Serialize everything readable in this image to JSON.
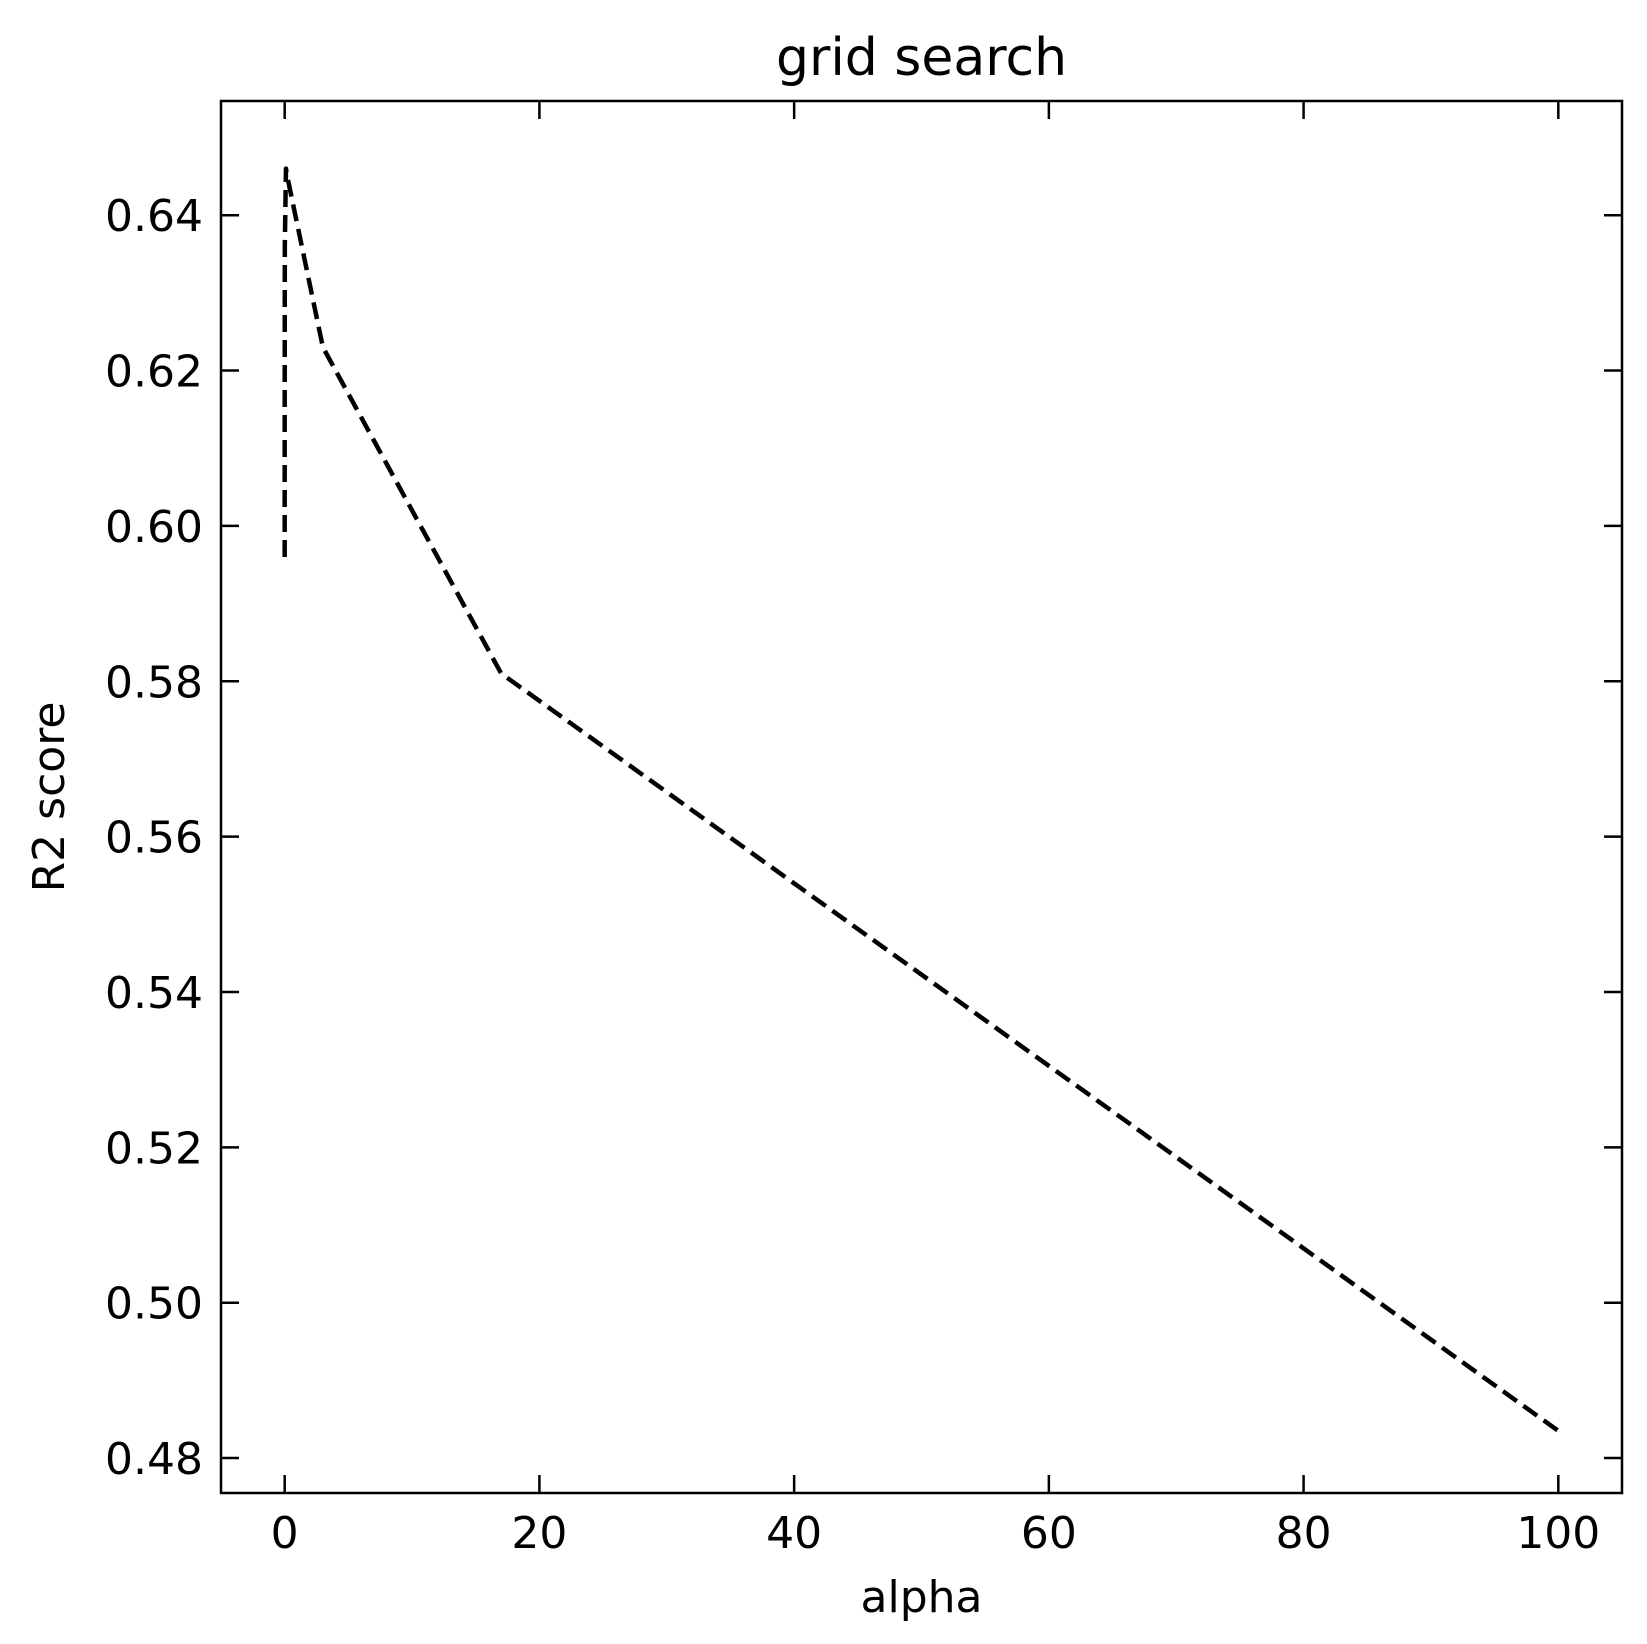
{
  "chart_data": {
    "type": "line",
    "title": "grid search",
    "xlabel": "alpha",
    "ylabel": "R2 score",
    "xlim": [
      -5,
      105
    ],
    "ylim": [
      0.4755,
      0.6547
    ],
    "xticks": [
      0,
      20,
      40,
      60,
      80,
      100
    ],
    "xtick_labels": [
      "0",
      "20",
      "40",
      "60",
      "80",
      "100"
    ],
    "yticks": [
      0.48,
      0.5,
      0.52,
      0.54,
      0.56,
      0.58,
      0.6,
      0.62,
      0.64
    ],
    "ytick_labels": [
      "0.48",
      "0.50",
      "0.52",
      "0.54",
      "0.56",
      "0.58",
      "0.60",
      "0.62",
      "0.64"
    ],
    "grid": false,
    "series": [
      {
        "color": "#000000",
        "line_style": "dashed",
        "x": [
          0.0001,
          0.001,
          0.01,
          0.1,
          0.2,
          3,
          17,
          100
        ],
        "y": [
          0.596,
          0.615,
          0.636,
          0.646,
          0.645,
          0.623,
          0.581,
          0.4835
        ]
      }
    ]
  }
}
